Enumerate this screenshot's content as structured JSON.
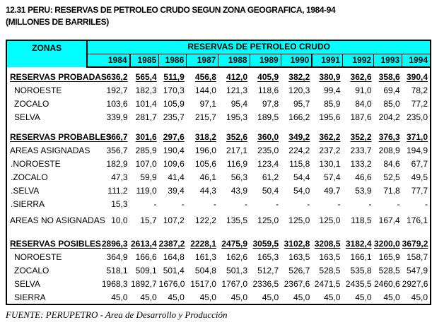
{
  "title": {
    "line1": "12.31 PERU: RESERVAS DE PETROLEO CRUDO SEGUN ZONA GEOGRAFICA, 1984-94",
    "line2": "(MILLONES DE BARRILES)"
  },
  "colors": {
    "header_bg": "#00ffff",
    "border": "#000000",
    "text": "#000000",
    "page_bg": "#ffffff"
  },
  "table": {
    "zones_header": "ZONAS",
    "group_header": "RESERVAS DE PETROLEO CRUDO",
    "years": [
      "1984",
      "1985",
      "1986",
      "1987",
      "1988",
      "1989",
      "1990",
      "1991",
      "1992",
      "1993",
      "1994"
    ],
    "rows": [
      {
        "kind": "spacer",
        "size": "top"
      },
      {
        "kind": "section",
        "label": "RESERVAS PROBADAS",
        "values": [
          "636,2",
          "565,4",
          "511,9",
          "456,8",
          "412,0",
          "405,9",
          "382,2",
          "380,9",
          "362,6",
          "358,6",
          "390,4"
        ]
      },
      {
        "kind": "sub",
        "label": "NOROESTE",
        "values": [
          "192,7",
          "182,3",
          "170,3",
          "144,0",
          "121,3",
          "118,6",
          "120,3",
          "99,4",
          "91,0",
          "69,4",
          "78,2"
        ]
      },
      {
        "kind": "sub",
        "label": "ZOCALO",
        "values": [
          "103,6",
          "101,4",
          "105,9",
          "97,1",
          "95,4",
          "97,8",
          "95,7",
          "85,9",
          "84,0",
          "85,0",
          "77,2"
        ]
      },
      {
        "kind": "sub",
        "label": "SELVA",
        "values": [
          "339,9",
          "281,7",
          "235,7",
          "215,7",
          "195,3",
          "189,5",
          "166,2",
          "195,6",
          "187,6",
          "204,2",
          "235,0"
        ]
      },
      {
        "kind": "spacer",
        "size": "md"
      },
      {
        "kind": "section",
        "label": "RESERVAS PROBABLES",
        "values": [
          "366,7",
          "301,6",
          "297,6",
          "318,2",
          "352,6",
          "360,0",
          "349,2",
          "362,2",
          "352,2",
          "376,3",
          "371,0"
        ]
      },
      {
        "kind": "plain",
        "label": "AREAS ASIGNADAS",
        "values": [
          "356,7",
          "285,9",
          "190,4",
          "196,0",
          "217,1",
          "235,0",
          "224,2",
          "237,2",
          "233,7",
          "208,9",
          "194,9"
        ]
      },
      {
        "kind": "dot",
        "label": ".NOROESTE",
        "values": [
          "182,9",
          "107,0",
          "109,6",
          "105,6",
          "116,9",
          "123,4",
          "115,8",
          "130,1",
          "133,2",
          "84,6",
          "67,7"
        ]
      },
      {
        "kind": "dot",
        "label": ".ZOCALO",
        "values": [
          "47,3",
          "59,9",
          "41,4",
          "46,1",
          "56,3",
          "61,2",
          "54,4",
          "57,4",
          "46,6",
          "52,5",
          "49,5"
        ]
      },
      {
        "kind": "dot",
        "label": ".SELVA",
        "values": [
          "111,2",
          "119,0",
          "39,4",
          "44,3",
          "43,9",
          "50,4",
          "54,0",
          "49,7",
          "53,9",
          "71,8",
          "77,7"
        ]
      },
      {
        "kind": "dot",
        "label": ".SIERRA",
        "values": [
          "15,3",
          "-",
          "-",
          "-",
          "-",
          "-",
          "-",
          "-",
          "-",
          "-",
          "-"
        ]
      },
      {
        "kind": "spacer",
        "size": "sm"
      },
      {
        "kind": "plain",
        "label": "AREAS NO ASIGNADAS",
        "values": [
          "10,0",
          "15,7",
          "107,2",
          "122,2",
          "135,5",
          "125,0",
          "125,0",
          "125,0",
          "118,5",
          "167,4",
          "176,1"
        ]
      },
      {
        "kind": "spacer",
        "size": "lg"
      },
      {
        "kind": "section",
        "label": "RESERVAS POSIBLES",
        "values": [
          "2896,3",
          "2613,4",
          "2387,2",
          "2228,1",
          "2475,9",
          "3059,5",
          "3102,8",
          "3208,5",
          "3182,4",
          "3200,0",
          "3679,2"
        ]
      },
      {
        "kind": "sub",
        "label": "NOROESTE",
        "values": [
          "364,9",
          "166,6",
          "164,8",
          "161,3",
          "162,6",
          "165,3",
          "163,5",
          "163,5",
          "166,1",
          "165,9",
          "158,7"
        ]
      },
      {
        "kind": "sub",
        "label": "ZOCALO",
        "values": [
          "518,1",
          "509,1",
          "501,4",
          "504,8",
          "501,3",
          "512,7",
          "526,7",
          "528,5",
          "535,8",
          "528,5",
          "547,9"
        ]
      },
      {
        "kind": "sub",
        "label": "SELVA",
        "values": [
          "1968,3",
          "1892,7",
          "1676,0",
          "1517,0",
          "1767,0",
          "2336,5",
          "2367,6",
          "2471,5",
          "2435,5",
          "2460,6",
          "2927,6"
        ]
      },
      {
        "kind": "sub",
        "label": "SIERRA",
        "values": [
          "45,0",
          "45,0",
          "45,0",
          "45,0",
          "45,0",
          "45,0",
          "45,0",
          "45,0",
          "45,0",
          "45,0",
          "45,0"
        ]
      }
    ]
  },
  "footer": {
    "source": "FUENTE: PERUPETRO - Area de Desarrollo y Producción"
  }
}
